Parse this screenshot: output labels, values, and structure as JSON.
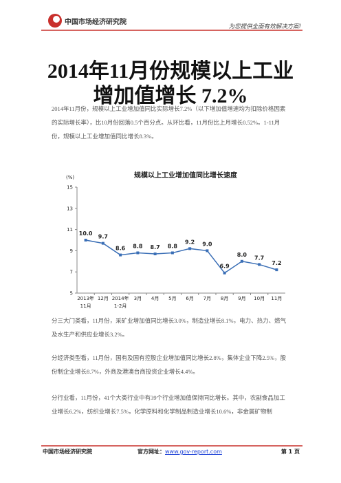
{
  "header": {
    "brand": "中国市场经济研究院",
    "tagline": "为您提供全面有效解决方案!"
  },
  "title": "2014年11月份规模以上工业增加值增长 7.2%",
  "paragraphs": [
    "2014年11月份，规模以上工业增加值同比实际增长7.2%（以下增加值增速均为扣除价格因素的实际增长率），比10月份回落0.5个百分点。从环比看，11月份比上月增长0.52%。1-11月份，规模以上工业增加值同比增长8.3%。",
    "分三大门类看，11月份，采矿业增加值同比增长3.0%，制造业增长8.1%，电力、热力、燃气及水生产和供应业增长3.2%。",
    "分经济类型看，11月份，国有及国有控股企业增加值同比增长2.8%，集体企业下降2.5%，股份制企业增长8.7%，外商及港澳台商投资企业增长4.4%。",
    "分行业看，11月份，41个大类行业中有39个行业增加值保持同比增长。其中，农副食品加工业增长6.2%，纺织业增长7.5%，化学原料和化学制品制造业增长10.6%，非金属矿物制"
  ],
  "chart_data": {
    "type": "line",
    "title": "规模以上工业增加值同比增长速度",
    "y_label": "(%)",
    "categories": [
      "2013年\n11月",
      "12月",
      "2014年\n1-2月",
      "3月",
      "4月",
      "5月",
      "6月",
      "7月",
      "8月",
      "9月",
      "10月",
      "11月"
    ],
    "values": [
      10.0,
      9.7,
      8.6,
      8.8,
      8.7,
      8.8,
      9.2,
      9.0,
      6.9,
      8.0,
      7.7,
      7.2
    ],
    "value_labels": [
      "10.0",
      "9.7",
      "8.6",
      "8.8",
      "8.7",
      "8.8",
      "9.2",
      "9.0",
      "6.9",
      "8.0",
      "7.7",
      "7.2"
    ],
    "color": "#3b6fb6",
    "ylim": [
      5,
      15
    ],
    "yticks": [
      5,
      7,
      9,
      11,
      13,
      15
    ],
    "grid": false
  },
  "footer": {
    "brand": "中国市场经济研究院",
    "site_label": "官方网址：",
    "site_url": "www.gov-report.com",
    "page": "第 1 页"
  }
}
